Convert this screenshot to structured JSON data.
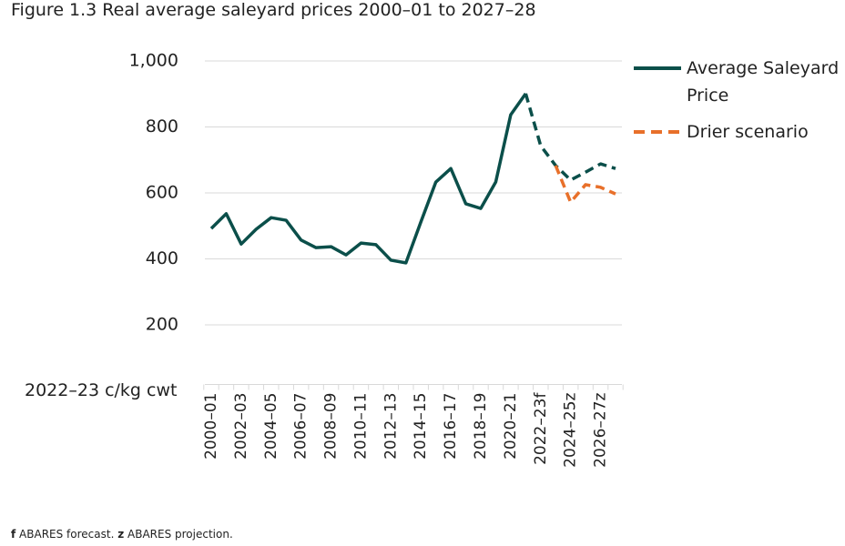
{
  "chart_data": {
    "type": "line",
    "title": "Figure 1.3 Real average saleyard prices 2000–01 to 2027–28",
    "y_label": "2022–23 c/kg cwt",
    "categories": [
      "2000–01",
      null,
      "2002–03",
      null,
      "2004–05",
      null,
      "2006–07",
      null,
      "2008–09",
      null,
      "2010–11",
      null,
      "2012–13",
      null,
      "2014–15",
      null,
      "2016–17",
      null,
      "2018–19",
      null,
      "2020–21",
      null,
      "2022–23f",
      null,
      "2024–25z",
      null,
      "2026–27z",
      null
    ],
    "series": [
      {
        "name": "Average Saleyard Price",
        "color": "#0b4f4a",
        "dashed_from_index": 21,
        "values": [
          492,
          537,
          445,
          490,
          525,
          517,
          457,
          434,
          437,
          412,
          448,
          443,
          396,
          388,
          512,
          633,
          674,
          567,
          553,
          633,
          837,
          901,
          743,
          683,
          639,
          663,
          688,
          674
        ]
      },
      {
        "name": "Drier scenario",
        "color": "#e8702a",
        "dashed_from_index": 0,
        "values": [
          null,
          null,
          null,
          null,
          null,
          null,
          null,
          null,
          null,
          null,
          null,
          null,
          null,
          null,
          null,
          null,
          null,
          null,
          null,
          null,
          null,
          null,
          null,
          683,
          572,
          625,
          617,
          597
        ]
      }
    ],
    "ylim": [
      0,
      1000
    ],
    "yticks": [
      200,
      400,
      600,
      800,
      {
        "value": 1000,
        "label": "1,000"
      }
    ],
    "grid": true,
    "legend": "right",
    "footnote": [
      "f",
      " ABARES forecast. ",
      "z",
      " ABARES projection."
    ]
  }
}
